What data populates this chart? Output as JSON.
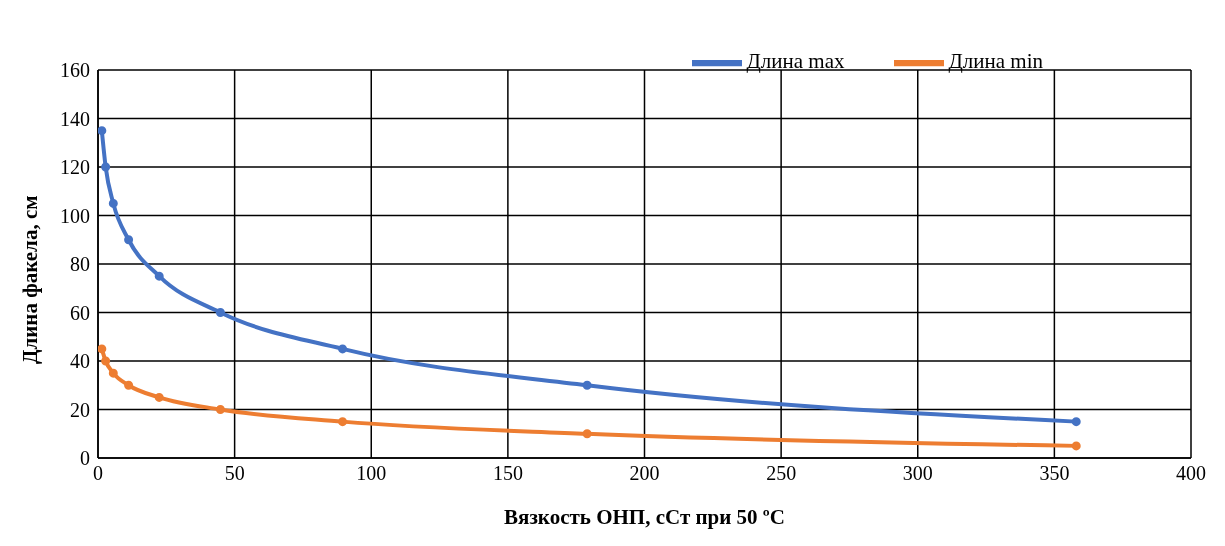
{
  "chart_data": {
    "type": "line",
    "xlabel": "Вязкость  ОНП,  сСт при  50 ºС",
    "ylabel": "Длина факела,  см",
    "x": [
      1.4,
      2.8,
      5.6,
      11.2,
      22.4,
      44.8,
      89.5,
      179,
      358
    ],
    "series": [
      {
        "name": "Длина max",
        "color": "#4472c4",
        "values": [
          135,
          120,
          105,
          90,
          75,
          60,
          45,
          30,
          15
        ]
      },
      {
        "name": "Длина min",
        "color": "#ed7d31",
        "values": [
          45,
          40,
          35,
          30,
          25,
          20,
          15,
          10,
          5
        ]
      }
    ],
    "xlim": [
      0,
      400
    ],
    "xticks": [
      0,
      50,
      100,
      150,
      200,
      250,
      300,
      350,
      400
    ],
    "ylim": [
      0,
      160
    ],
    "yticks": [
      0,
      20,
      40,
      60,
      80,
      100,
      120,
      140,
      160
    ],
    "grid": true,
    "legend": "top right",
    "marker": "circle",
    "line_style": "solid"
  }
}
